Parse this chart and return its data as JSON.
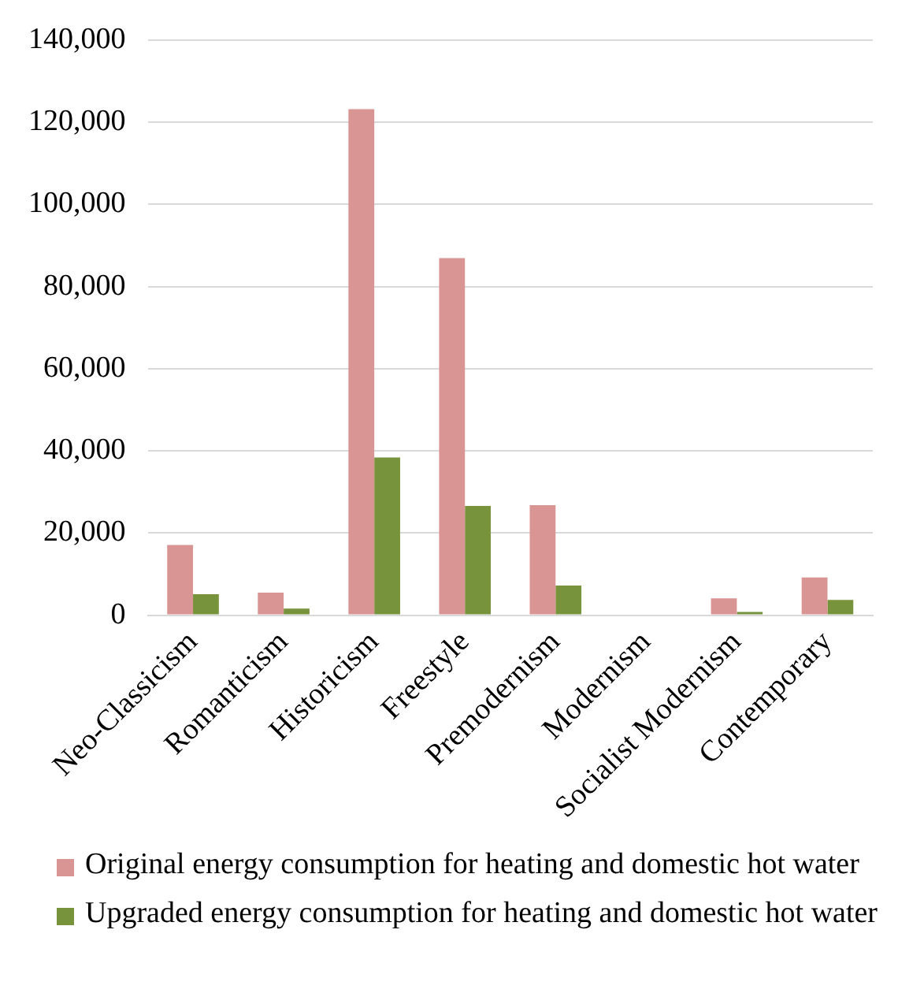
{
  "chart_data": {
    "type": "bar",
    "categories": [
      "Neo-Classicism",
      "Romanticism",
      "Historicism",
      "Freestyle",
      "Premodernism",
      "Modernism",
      "Socialist Modernism",
      "Contemporary"
    ],
    "series": [
      {
        "name": "Original energy consumption for heating and domestic hot water",
        "color": "#d99594",
        "values": [
          17100,
          5500,
          123200,
          86900,
          26800,
          null,
          4100,
          9200
        ]
      },
      {
        "name": "Upgraded energy consumption for heating and domestic hot water",
        "color": "#77933c",
        "values": [
          5100,
          1600,
          38400,
          26600,
          7200,
          null,
          800,
          3700
        ]
      }
    ],
    "ylim": [
      0,
      140000
    ],
    "yticks": [
      {
        "value": 0,
        "label": "0"
      },
      {
        "value": 20000,
        "label": "20,000"
      },
      {
        "value": 40000,
        "label": "40,000"
      },
      {
        "value": 60000,
        "label": "60,000"
      },
      {
        "value": 80000,
        "label": "80,000"
      },
      {
        "value": 100000,
        "label": "100,000"
      },
      {
        "value": 120000,
        "label": "120,000"
      },
      {
        "value": 140000,
        "label": "140,000"
      }
    ],
    "grid": "y",
    "legend": "bottom"
  }
}
